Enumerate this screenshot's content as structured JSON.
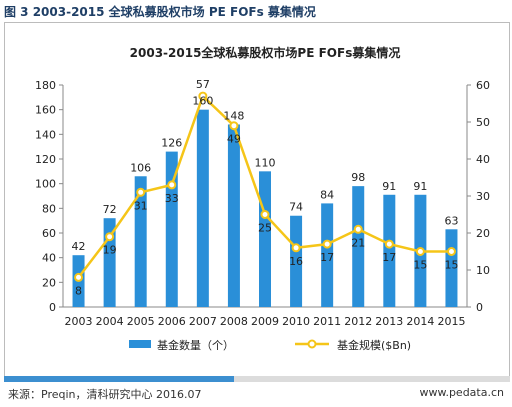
{
  "figure_heading": "图 3 2003-2015 全球私募股权市场 PE FOFs 募集情况",
  "source": "来源：Preqin，清科研究中心 2016.07",
  "website": "www.pedata.cn",
  "chart_data": {
    "type": "bar+line",
    "title": "2003-2015全球私募股权市场PE FOFs募集情况",
    "categories": [
      "2003",
      "2004",
      "2005",
      "2006",
      "2007",
      "2008",
      "2009",
      "2010",
      "2011",
      "2012",
      "2013",
      "2014",
      "2015"
    ],
    "series": [
      {
        "name": "基金数量（个）",
        "type": "bar",
        "axis": "left",
        "color": "#2a8fd8",
        "values": [
          42,
          72,
          106,
          126,
          160,
          148,
          110,
          74,
          84,
          98,
          91,
          91,
          63
        ]
      },
      {
        "name": "基金规模($Bn)",
        "type": "line",
        "axis": "right",
        "color": "#f5c518",
        "values": [
          8,
          19,
          31,
          33,
          57,
          49,
          25,
          16,
          17,
          21,
          17,
          15,
          15
        ]
      }
    ],
    "left_axis": {
      "min": 0,
      "max": 180,
      "step": 20,
      "ticks": [
        "0",
        "20",
        "40",
        "60",
        "80",
        "100",
        "120",
        "140",
        "160",
        "180"
      ]
    },
    "right_axis": {
      "min": 0,
      "max": 60,
      "step": 10,
      "ticks": [
        "0",
        "10",
        "20",
        "30",
        "40",
        "50",
        "60"
      ]
    },
    "legend_position": "bottom",
    "grid": false
  }
}
